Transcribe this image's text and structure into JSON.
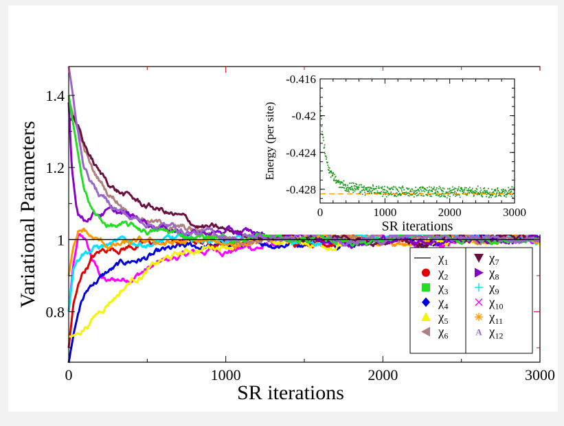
{
  "chart_data": [
    {
      "type": "line",
      "xlabel": "SR iterations",
      "ylabel": "Variational Parameters",
      "xlim": [
        0,
        3000
      ],
      "ylim": [
        0.66,
        1.48
      ],
      "x_ticks": [
        "0",
        "1000",
        "2000",
        "3000"
      ],
      "y_ticks": [
        "0.8",
        "1",
        "1.2",
        "1.4"
      ],
      "legend_position": "bottom-right",
      "grid": false,
      "series": [
        {
          "name": "χ1",
          "color": "#000000",
          "marker": "line",
          "x": [
            0,
            3000
          ],
          "y": [
            1.0,
            1.0
          ]
        },
        {
          "name": "χ2",
          "color": "#e00000",
          "marker": "circle",
          "x": [
            0,
            30,
            80,
            150,
            250,
            400,
            600,
            800,
            1000,
            1300,
            1600,
            2000,
            2500,
            3000
          ],
          "y": [
            0.7,
            0.82,
            0.9,
            0.95,
            0.975,
            0.985,
            0.99,
            0.995,
            0.995,
            1.0,
            1.0,
            1.005,
            1.005,
            1.005
          ]
        },
        {
          "name": "χ3",
          "color": "#22dd22",
          "marker": "square",
          "x": [
            0,
            20,
            50,
            100,
            150,
            200,
            260,
            400,
            600,
            800,
            1000,
            1300,
            1600,
            2000,
            2500,
            3000
          ],
          "y": [
            1.4,
            1.34,
            1.26,
            1.14,
            1.08,
            1.05,
            1.04,
            1.03,
            1.02,
            1.01,
            1.005,
            1.005,
            1.0,
            1.0,
            1.0,
            1.0
          ]
        },
        {
          "name": "χ4",
          "color": "#0000dd",
          "marker": "diamond",
          "x": [
            0,
            30,
            80,
            150,
            250,
            400,
            600,
            800,
            1000,
            1300,
            1600,
            2000,
            2500,
            3000
          ],
          "y": [
            0.66,
            0.74,
            0.83,
            0.88,
            0.91,
            0.94,
            0.96,
            0.975,
            0.985,
            0.99,
            1.0,
            1.0,
            1.005,
            1.005
          ]
        },
        {
          "name": "χ5",
          "color": "#f5f500",
          "marker": "triangle-up",
          "x": [
            0,
            20,
            60,
            150,
            250,
            400,
            600,
            800,
            1000,
            1300,
            1600,
            2000,
            2500,
            3000
          ],
          "y": [
            0.73,
            0.73,
            0.74,
            0.78,
            0.83,
            0.89,
            0.94,
            0.97,
            0.99,
            0.995,
            0.99,
            0.995,
            1.0,
            1.0
          ]
        },
        {
          "name": "χ6",
          "color": "#b08080",
          "marker": "triangle-left",
          "x": [
            0,
            40,
            100,
            150,
            250,
            400,
            600,
            800,
            1000,
            1300,
            1600,
            2000,
            2500,
            3000
          ],
          "y": [
            1.39,
            1.33,
            1.25,
            1.19,
            1.13,
            1.08,
            1.04,
            1.02,
            1.01,
            1.0,
            1.0,
            1.005,
            1.005,
            1.005
          ]
        },
        {
          "name": "χ7",
          "color": "#6a0f40",
          "marker": "triangle-down",
          "x": [
            0,
            30,
            100,
            200,
            300,
            450,
            600,
            800,
            1000,
            1300,
            1600,
            2000,
            2500,
            3000
          ],
          "y": [
            1.33,
            1.34,
            1.26,
            1.18,
            1.14,
            1.1,
            1.08,
            1.04,
            1.02,
            1.01,
            1.005,
            1.005,
            1.005,
            1.005
          ]
        },
        {
          "name": "χ8",
          "color": "#8800cc",
          "marker": "triangle-right",
          "x": [
            0,
            20,
            50,
            100,
            150,
            250,
            400,
            600,
            800,
            1000,
            1300,
            1600,
            2000,
            2500,
            3000
          ],
          "y": [
            1.38,
            1.2,
            1.09,
            1.06,
            1.08,
            1.08,
            1.06,
            1.04,
            1.02,
            1.02,
            1.01,
            1.005,
            1.0,
            1.0,
            1.0
          ]
        },
        {
          "name": "χ9",
          "color": "#00e5ff",
          "marker": "plus",
          "x": [
            0,
            30,
            80,
            150,
            250,
            400,
            600,
            800,
            1000,
            1300,
            1600,
            2000,
            2500,
            3000
          ],
          "y": [
            0.8,
            0.92,
            0.97,
            0.98,
            0.985,
            0.99,
            0.995,
            1.0,
            1.0,
            1.0,
            1.0,
            1.005,
            1.005,
            1.005
          ]
        },
        {
          "name": "χ10",
          "color": "#ff00ff",
          "marker": "cross",
          "x": [
            0,
            30,
            60,
            100,
            150,
            200,
            250,
            350,
            500,
            700,
            900,
            1200,
            1600,
            2000,
            2500,
            3000
          ],
          "y": [
            0.8,
            0.93,
            1.0,
            1.0,
            0.94,
            0.9,
            0.88,
            0.89,
            0.92,
            0.95,
            0.97,
            0.98,
            0.99,
            1.0,
            1.0,
            1.0
          ]
        },
        {
          "name": "χ11",
          "color": "#ff9900",
          "marker": "star",
          "x": [
            0,
            30,
            60,
            100,
            150,
            250,
            400,
            600,
            800,
            1000,
            1300,
            1600,
            2000,
            2500,
            3000
          ],
          "y": [
            0.9,
            0.98,
            1.01,
            1.02,
            1.0,
            0.98,
            0.985,
            0.99,
            0.99,
            0.99,
            0.995,
            1.0,
            1.0,
            1.0,
            1.0
          ]
        },
        {
          "name": "χ12",
          "color": "#9966cc",
          "marker": "A",
          "x": [
            0,
            20,
            50,
            100,
            200,
            400,
            600,
            800,
            1000,
            1300,
            1600,
            2000,
            2500,
            3000
          ],
          "y": [
            1.48,
            1.42,
            1.32,
            1.2,
            1.12,
            1.06,
            1.04,
            1.02,
            1.01,
            1.005,
            1.005,
            1.005,
            1.005,
            1.005
          ]
        }
      ]
    },
    {
      "type": "scatter",
      "xlabel": "SR iterations",
      "ylabel": "Energy (per site)",
      "xlim": [
        0,
        3000
      ],
      "ylim": [
        -0.4295,
        -0.416
      ],
      "x_ticks": [
        "0",
        "1000",
        "2000",
        "3000"
      ],
      "y_ticks": [
        "-0.428",
        "-0.424",
        "-0.42",
        "-0.416"
      ],
      "grid": false,
      "series": [
        {
          "color": "#1a9a1a",
          "x": [
            0,
            20,
            50,
            100,
            150,
            200,
            300,
            400,
            500,
            700,
            1000,
            1500,
            2000,
            2500,
            3000
          ],
          "y": [
            -0.4185,
            -0.4205,
            -0.4228,
            -0.4248,
            -0.426,
            -0.4267,
            -0.4274,
            -0.4277,
            -0.4279,
            -0.4281,
            -0.4282,
            -0.4283,
            -0.4283,
            -0.4283,
            -0.4283
          ]
        },
        {
          "color": "#ff9900",
          "line_style": "dashed",
          "x": [
            0,
            3000
          ],
          "y": [
            -0.4285,
            -0.4285
          ]
        }
      ]
    }
  ]
}
